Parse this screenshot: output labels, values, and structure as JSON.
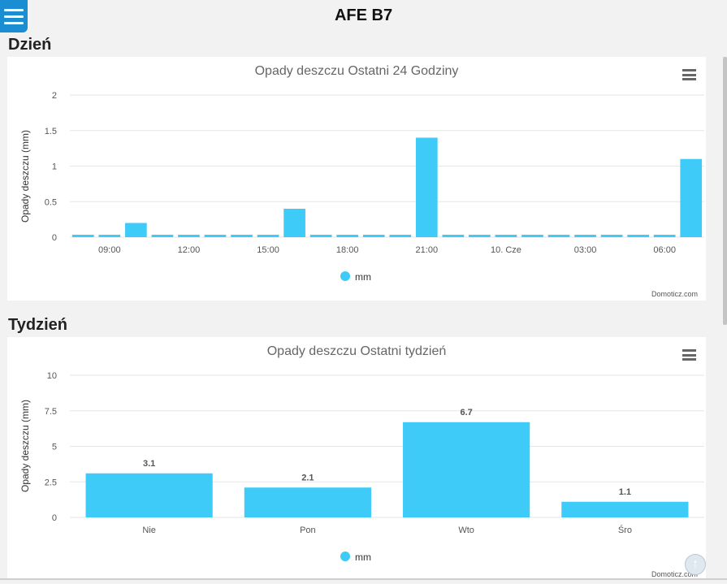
{
  "app": {
    "title": "AFE B7"
  },
  "sections": {
    "day": {
      "title": "Dzień"
    },
    "week": {
      "title": "Tydzień"
    }
  },
  "credits": "Domoticz.com",
  "chart_data": [
    {
      "type": "bar",
      "title": "Opady deszczu Ostatni 24 Godziny",
      "ylabel": "Opady deszczu (mm)",
      "xlabel": "",
      "ylim": [
        0,
        2
      ],
      "yticks": [
        "0",
        "0.5",
        "1",
        "1.5",
        "2"
      ],
      "xticks": [
        "09:00",
        "12:00",
        "15:00",
        "18:00",
        "21:00",
        "10. Cze",
        "03:00",
        "06:00"
      ],
      "series": [
        {
          "name": "mm",
          "values": [
            0,
            0,
            0.2,
            0,
            0,
            0,
            0,
            0,
            0.4,
            0,
            0,
            0,
            0,
            1.4,
            0,
            0,
            0,
            0,
            0,
            0,
            0,
            0,
            0,
            1.1
          ]
        }
      ],
      "legend": "bottom-center",
      "color": "#3ecbf7",
      "grid": true
    },
    {
      "type": "bar",
      "title": "Opady deszczu Ostatni tydzień",
      "ylabel": "Opady deszczu (mm)",
      "xlabel": "",
      "ylim": [
        0,
        10
      ],
      "yticks": [
        "0",
        "2.5",
        "5",
        "7.5",
        "10"
      ],
      "categories": [
        "Nie",
        "Pon",
        "Wto",
        "Śro"
      ],
      "series": [
        {
          "name": "mm",
          "values": [
            3.1,
            2.1,
            6.7,
            1.1
          ],
          "labels": [
            "3.1",
            "2.1",
            "6.7",
            "1.1"
          ]
        }
      ],
      "legend": "bottom-center",
      "color": "#3ecbf7",
      "grid": true
    }
  ]
}
